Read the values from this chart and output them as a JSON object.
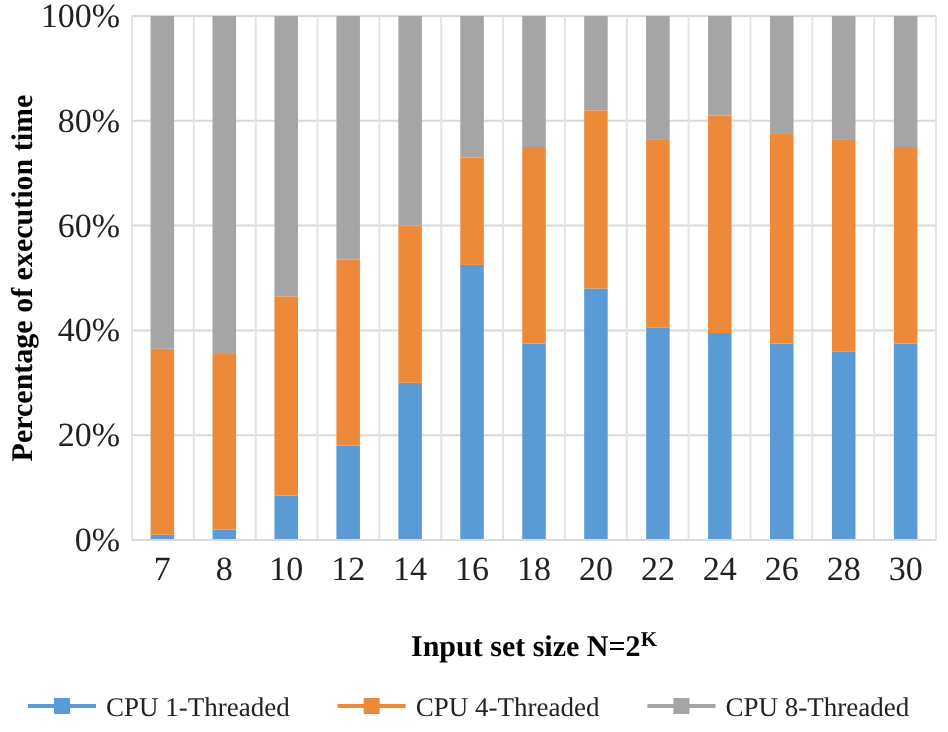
{
  "chart_data": {
    "type": "bar",
    "stacked": true,
    "xlabel": "Input set size N=2$^{K}$",
    "ylabel": "Percentage of execution time",
    "categories": [
      "7",
      "8",
      "10",
      "12",
      "14",
      "16",
      "18",
      "20",
      "22",
      "24",
      "26",
      "28",
      "30"
    ],
    "series": [
      {
        "name": "CPU 1-Threaded",
        "color": "#5b9bd5",
        "values": [
          1,
          2,
          8.5,
          18,
          30,
          52.5,
          37.5,
          48,
          40.5,
          39.5,
          37.5,
          36,
          37.5
        ]
      },
      {
        "name": "CPU 4-Threaded",
        "color": "#ed8a3a",
        "values": [
          35.5,
          33.5,
          38,
          35.5,
          30,
          20.5,
          37.5,
          34,
          36,
          41.5,
          40,
          40.5,
          37.5
        ]
      },
      {
        "name": "CPU 8-Threaded",
        "color": "#a5a5a5",
        "values": [
          63.5,
          64.5,
          53.5,
          46.5,
          40,
          27,
          25,
          18,
          23.5,
          19,
          22.5,
          23.5,
          25
        ]
      }
    ],
    "ylim": [
      0,
      100
    ],
    "yticks": [
      {
        "value": 0,
        "label": "0%"
      },
      {
        "value": 20,
        "label": "20%"
      },
      {
        "value": 40,
        "label": "40%"
      },
      {
        "value": 60,
        "label": "60%"
      },
      {
        "value": 80,
        "label": "80%"
      },
      {
        "value": 100,
        "label": "100%"
      }
    ],
    "grid": true,
    "legend": "bottom"
  }
}
